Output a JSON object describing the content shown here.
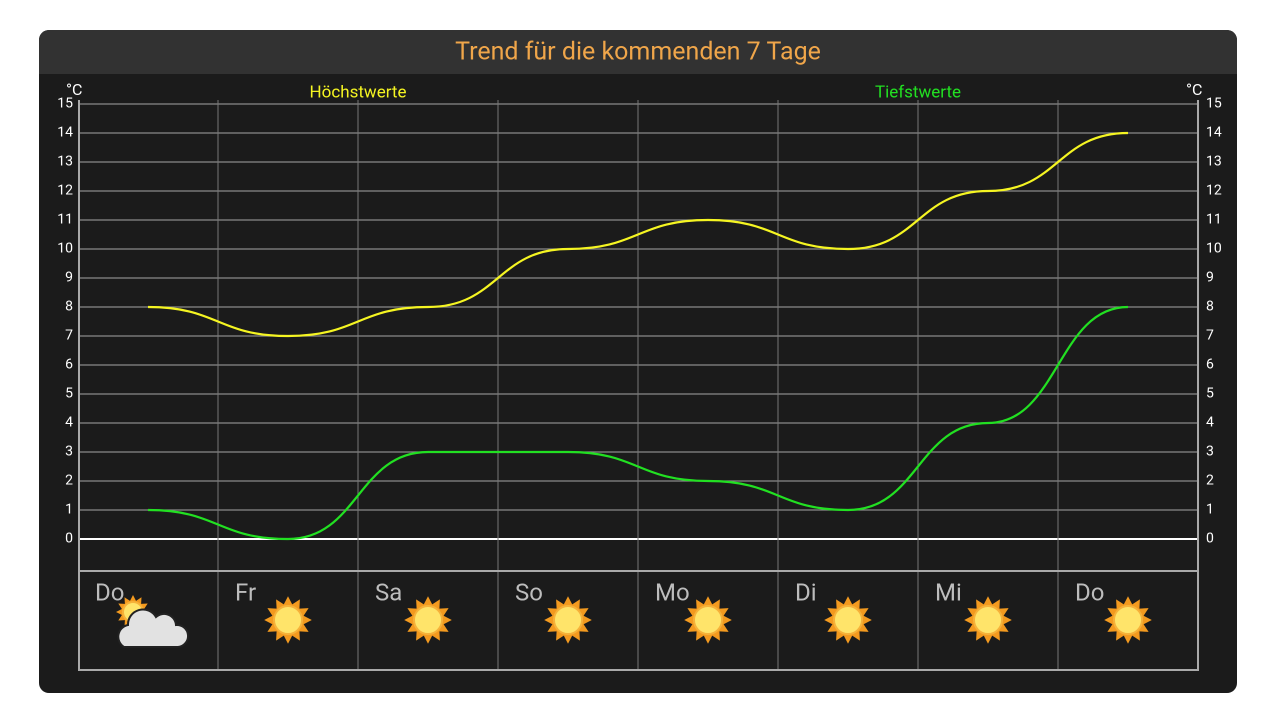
{
  "chart_data": {
    "type": "line",
    "title": "Trend für die kommenden 7 Tage",
    "y_unit_left": "°C",
    "y_unit_right": "°C",
    "categories": [
      "Do",
      "Fr",
      "Sa",
      "So",
      "Mo",
      "Di",
      "Mi",
      "Do"
    ],
    "series": [
      {
        "name": "Höchstwerte",
        "color": "#f5f522",
        "values": [
          8,
          7,
          8,
          10,
          11,
          10,
          12,
          14
        ]
      },
      {
        "name": "Tiefstwerte",
        "color": "#22e022",
        "values": [
          1,
          0,
          3,
          3,
          2,
          1,
          4,
          8
        ]
      }
    ],
    "ylim": [
      -1,
      15
    ],
    "yticks": [
      0,
      1,
      2,
      3,
      4,
      5,
      6,
      7,
      8,
      9,
      10,
      11,
      12,
      13,
      14,
      15
    ],
    "grid": true
  }
}
